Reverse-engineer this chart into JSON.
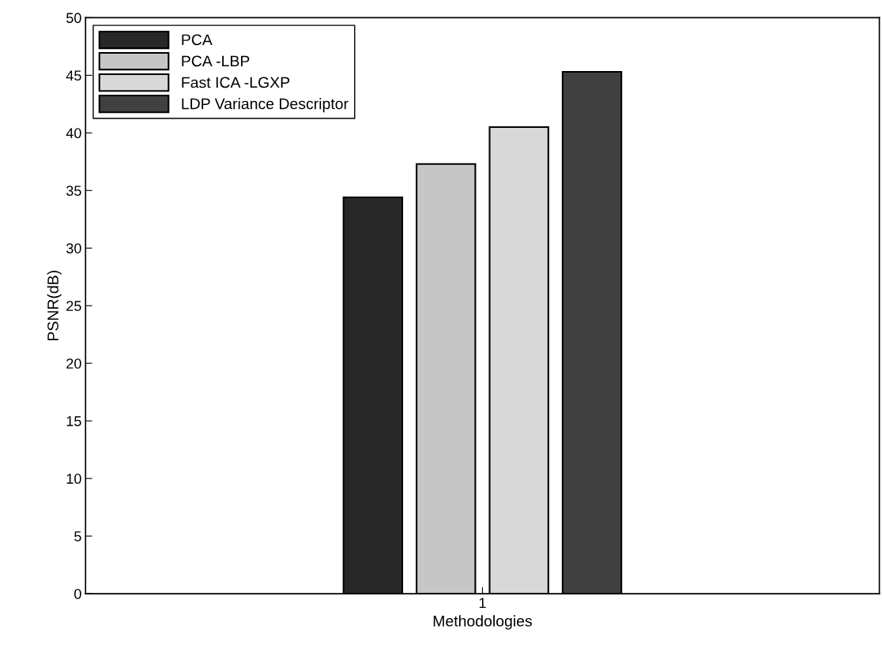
{
  "chart_data": {
    "type": "bar",
    "xlabel": "Methodologies",
    "ylabel": "PSNR(dB)",
    "categories": [
      "1"
    ],
    "series": [
      {
        "name": "PCA",
        "color": "#282828",
        "values": [
          34.4
        ]
      },
      {
        "name": "PCA -LBP",
        "color": "#c6c6c6",
        "values": [
          37.3
        ]
      },
      {
        "name": "Fast ICA -LGXP",
        "color": "#d8d8d8",
        "values": [
          40.5
        ]
      },
      {
        "name": "LDP Variance Descriptor",
        "color": "#404040",
        "values": [
          45.3
        ]
      }
    ],
    "ylim": [
      0,
      50
    ],
    "yticks": [
      0,
      5,
      10,
      15,
      20,
      25,
      30,
      35,
      40,
      45,
      50
    ],
    "grid": false,
    "legend": "top left"
  }
}
